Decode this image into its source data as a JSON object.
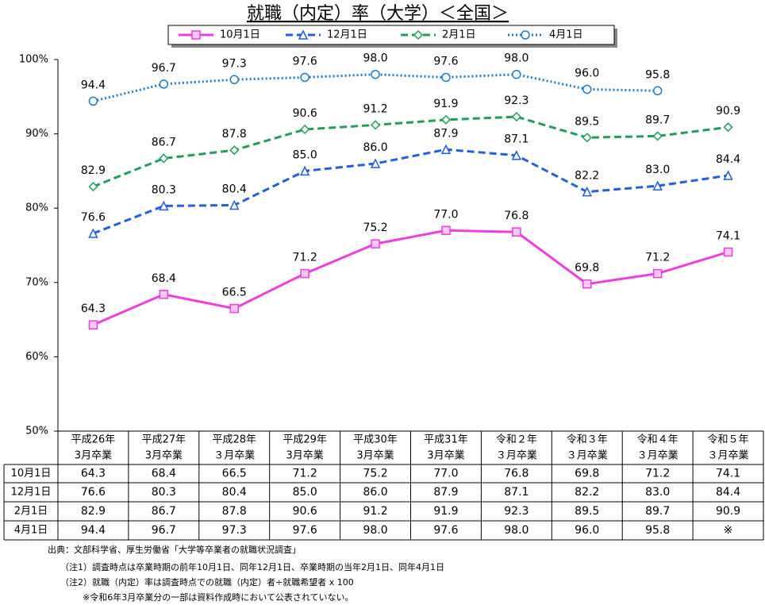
{
  "chart_data": {
    "type": "line",
    "title": "就職（内定）率（大学）＜全国＞",
    "categories": [
      [
        "平成26年",
        "3月卒業"
      ],
      [
        "平成27年",
        "3月卒業"
      ],
      [
        "平成28年",
        "３月卒業"
      ],
      [
        "平成29年",
        "3月卒業"
      ],
      [
        "平成30年",
        "3月卒業"
      ],
      [
        "平成31年",
        "3月卒業"
      ],
      [
        "令和２年",
        "３月卒業"
      ],
      [
        "令和３年",
        "３月卒業"
      ],
      [
        "令和４年",
        "３月卒業"
      ],
      [
        "令和５年",
        "３月卒業"
      ]
    ],
    "series": [
      {
        "name": "10月1日",
        "color": "#f03ce0",
        "marker": "square",
        "dash": "solid",
        "values": [
          64.3,
          68.4,
          66.5,
          71.2,
          75.2,
          77.0,
          76.8,
          69.8,
          71.2,
          74.1
        ],
        "value_labels": [
          "64.3",
          "68.4",
          "66.5",
          "71.2",
          "75.2",
          "77.0",
          "76.8",
          "69.8",
          "71.2",
          "74.1"
        ]
      },
      {
        "name": "12月1日",
        "color": "#1f5fe0",
        "marker": "triangle",
        "dash": "dashed",
        "values": [
          76.6,
          80.3,
          80.4,
          85.0,
          86.0,
          87.9,
          87.1,
          82.2,
          83.0,
          84.4
        ],
        "value_labels": [
          "76.6",
          "80.3",
          "80.4",
          "85.0",
          "86.0",
          "87.9",
          "87.1",
          "82.2",
          "83.0",
          "84.4"
        ]
      },
      {
        "name": "2月1日",
        "color": "#1f9e5a",
        "marker": "diamond",
        "dash": "dashed",
        "values": [
          82.9,
          86.7,
          87.8,
          90.6,
          91.2,
          91.9,
          92.3,
          89.5,
          89.7,
          90.9
        ],
        "value_labels": [
          "82.9",
          "86.7",
          "87.8",
          "90.6",
          "91.2",
          "91.9",
          "92.3",
          "89.5",
          "89.7",
          "90.9"
        ]
      },
      {
        "name": "4月1日",
        "color": "#1a7cc6",
        "marker": "circle",
        "dash": "dotted",
        "values": [
          94.4,
          96.7,
          97.3,
          97.6,
          98.0,
          97.6,
          98.0,
          96.0,
          95.8,
          null
        ],
        "value_labels": [
          "94.4",
          "96.7",
          "97.3",
          "97.6",
          "98.0",
          "97.6",
          "98.0",
          "96.0",
          "95.8",
          null
        ]
      }
    ],
    "missing_mark": "※",
    "ylim": [
      50,
      100
    ],
    "yticks": [
      {
        "value": 50,
        "label": "50%"
      },
      {
        "value": 60,
        "label": "60%"
      },
      {
        "value": 70,
        "label": "70%"
      },
      {
        "value": 80,
        "label": "80%"
      },
      {
        "value": 90,
        "label": "90%"
      },
      {
        "value": 100,
        "label": "100%"
      }
    ],
    "grid": false,
    "notes": [
      "出典：文部科学省、厚生労働省「大学等卒業者の就職状況調査」",
      "（注1）調査時点は卒業時期の前年10月1日、同年12月1日、卒業時期の当年2月1日、同年4月1日",
      "（注2）就職（内定）率は調査時点での就職（内定）者÷就職希望者 x 100",
      "※令和6年3月卒業分の一部は資料作成時において公表されていない。"
    ]
  }
}
